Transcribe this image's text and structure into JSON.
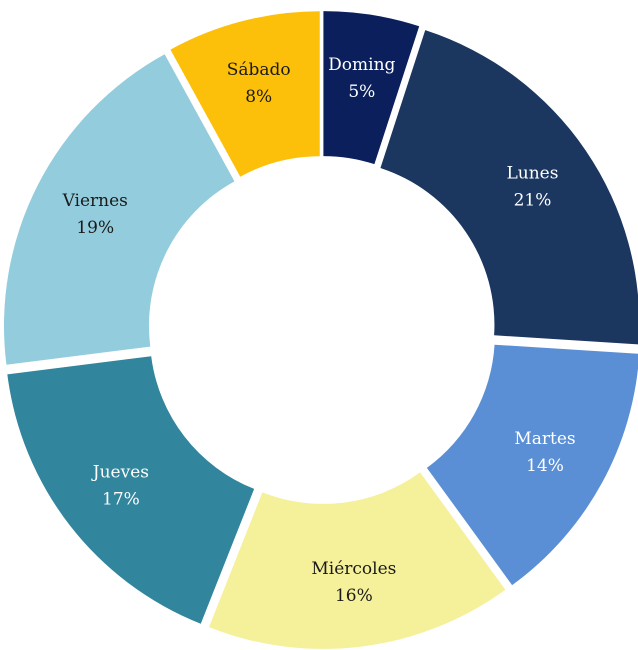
{
  "chart_data": {
    "type": "donut",
    "categories": [
      "Doming",
      "Lunes",
      "Martes",
      "Miércoles",
      "Jueves",
      "Viernes",
      "Sábado"
    ],
    "values": [
      5,
      21,
      14,
      16,
      17,
      19,
      8
    ],
    "value_labels": [
      "5%",
      "21%",
      "14%",
      "16%",
      "17%",
      "19%",
      "8%"
    ],
    "colors": [
      "#0b1f5c",
      "#1b365f",
      "#5a8fd6",
      "#f5f09a",
      "#31859c",
      "#93cddd",
      "#fdc00a"
    ]
  }
}
